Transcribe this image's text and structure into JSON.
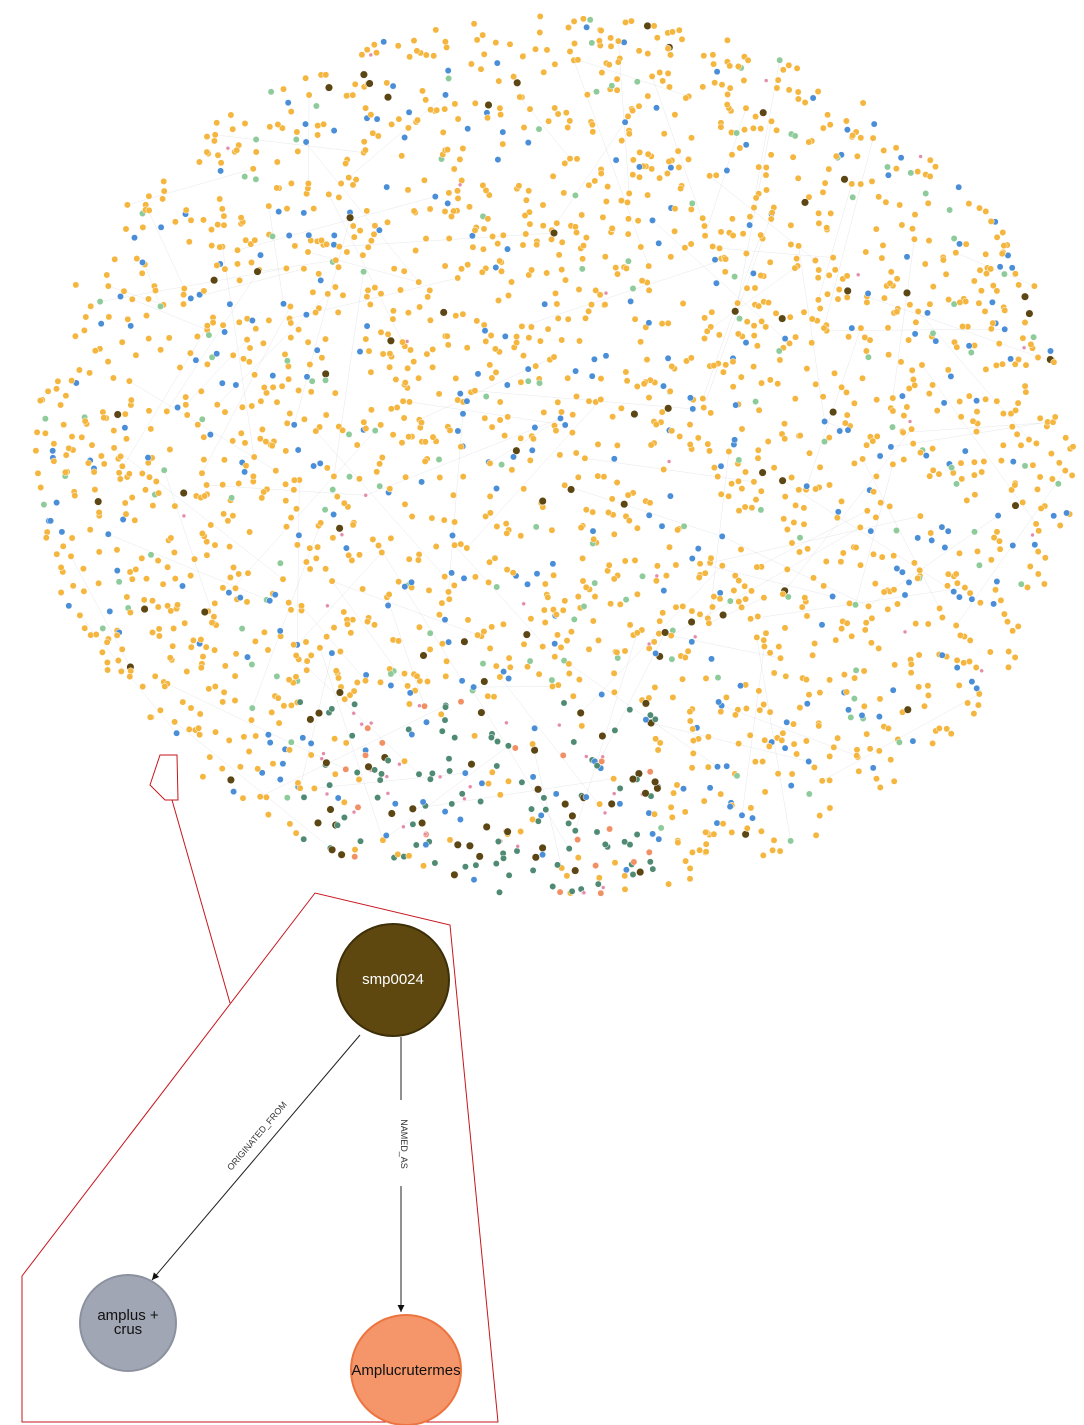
{
  "nodes": [
    {
      "label": "smp0024"
    },
    {
      "label": "amplus + crus"
    },
    {
      "label": "Amplucrutermes"
    }
  ],
  "edges": [
    {
      "label": "ORIGINATED_FROM"
    },
    {
      "label": "NAMED_AS"
    }
  ]
}
